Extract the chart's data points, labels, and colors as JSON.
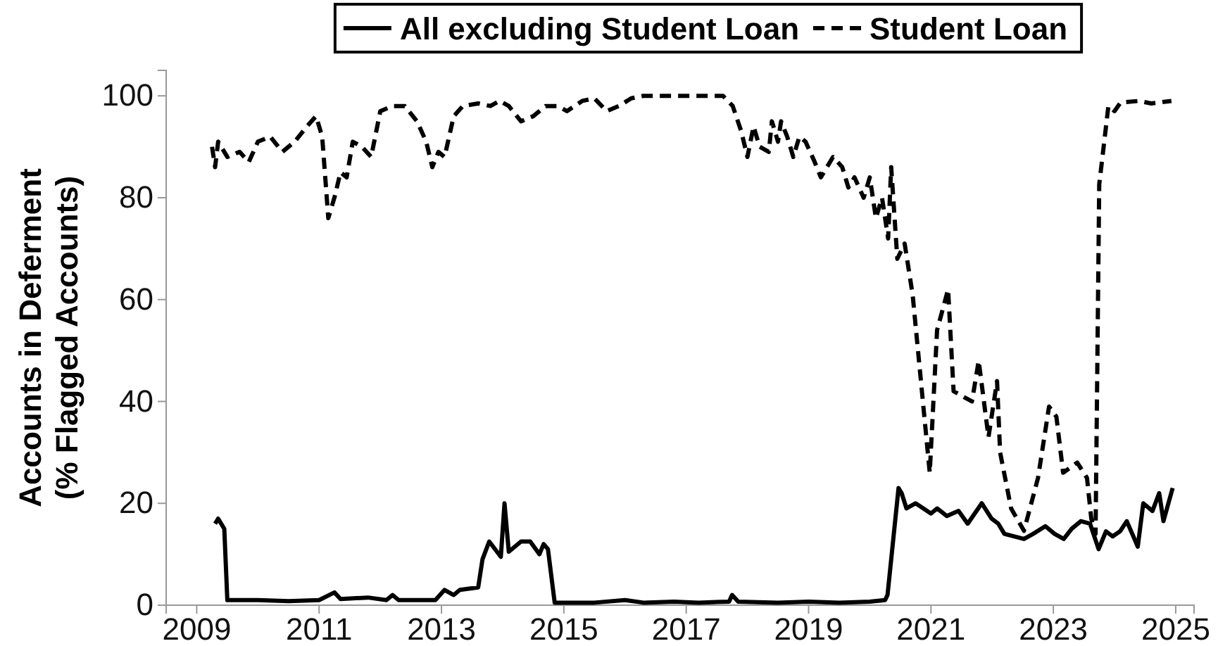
{
  "chart_data": {
    "type": "line",
    "ylabel": "Accounts in Deferment\n(% Flagged Accounts)",
    "xlim": [
      2008.5,
      2025.3
    ],
    "xticks": [
      2009,
      2011,
      2013,
      2015,
      2017,
      2019,
      2021,
      2023,
      2025
    ],
    "ylim": [
      0,
      105
    ],
    "yticks": [
      0,
      20,
      40,
      60,
      80,
      100
    ],
    "grid": false,
    "legend": "top",
    "marker": "none",
    "series": [
      {
        "name": "All excluding Student Loan",
        "color": "#000000",
        "line_style": "solid",
        "x": [
          2009.3,
          2009.35,
          2009.45,
          2009.5,
          2010,
          2010.5,
          2011,
          2011.25,
          2011.35,
          2011.8,
          2012.1,
          2012.2,
          2012.3,
          2012.9,
          2013.05,
          2013.2,
          2013.3,
          2013.6,
          2013.67,
          2013.78,
          2013.97,
          2014.03,
          2014.1,
          2014.3,
          2014.45,
          2014.6,
          2014.67,
          2014.74,
          2014.85,
          2015.5,
          2016,
          2016.3,
          2016.8,
          2017.2,
          2017.7,
          2017.75,
          2017.85,
          2018.5,
          2019,
          2019.5,
          2020,
          2020.25,
          2020.29,
          2020.47,
          2020.52,
          2020.6,
          2020.75,
          2021,
          2021.1,
          2021.26,
          2021.45,
          2021.6,
          2021.83,
          2021.99,
          2022.1,
          2022.2,
          2022.52,
          2022.67,
          2022.87,
          2023.02,
          2023.17,
          2023.3,
          2023.45,
          2023.6,
          2023.74,
          2023.86,
          2023.97,
          2024.09,
          2024.2,
          2024.38,
          2024.47,
          2024.62,
          2024.73,
          2024.8,
          2024.95
        ],
        "values": [
          16,
          17,
          15,
          1,
          1,
          0.8,
          1,
          2.5,
          1.2,
          1.5,
          1,
          2,
          1,
          1,
          3,
          2,
          3,
          3.5,
          9,
          12.5,
          9.5,
          20,
          10.5,
          12.5,
          12.5,
          10,
          12,
          11,
          0.5,
          0.5,
          1,
          0.5,
          0.7,
          0.5,
          0.7,
          2,
          0.7,
          0.5,
          0.7,
          0.5,
          0.7,
          1,
          2,
          23,
          22,
          19,
          20,
          18,
          19,
          17.5,
          18.5,
          16,
          20,
          17,
          16,
          14,
          13,
          14,
          15.5,
          14,
          13,
          15,
          16.5,
          16,
          11,
          14.5,
          13.5,
          14.5,
          16.5,
          11.5,
          20,
          18.5,
          22,
          16.5,
          23
        ]
      },
      {
        "name": "Student Loan",
        "color": "#000000",
        "line_style": "dashed",
        "x": [
          2009.25,
          2009.3,
          2009.35,
          2009.5,
          2009.7,
          2009.85,
          2010,
          2010.2,
          2010.4,
          2010.6,
          2010.8,
          2010.95,
          2011.05,
          2011.15,
          2011.25,
          2011.35,
          2011.45,
          2011.55,
          2011.7,
          2011.85,
          2012,
          2012.2,
          2012.4,
          2012.6,
          2012.75,
          2012.85,
          2012.95,
          2013.05,
          2013.2,
          2013.35,
          2013.6,
          2013.8,
          2013.95,
          2014.1,
          2014.3,
          2014.5,
          2014.7,
          2014.9,
          2015.05,
          2015.3,
          2015.5,
          2015.7,
          2015.9,
          2016.1,
          2016.3,
          2017,
          2017.6,
          2017.76,
          2017.9,
          2018,
          2018.1,
          2018.2,
          2018.35,
          2018.4,
          2018.5,
          2018.55,
          2018.65,
          2018.75,
          2018.85,
          2018.95,
          2019.1,
          2019.2,
          2019.3,
          2019.4,
          2019.55,
          2019.65,
          2019.75,
          2019.9,
          2020,
          2020.1,
          2020.2,
          2020.3,
          2020.35,
          2020.45,
          2020.57,
          2020.7,
          2020.98,
          2021.1,
          2021.28,
          2021.37,
          2021.67,
          2021.78,
          2021.94,
          2022.08,
          2022.13,
          2022.31,
          2022.52,
          2022.75,
          2022.93,
          2023.05,
          2023.16,
          2023.39,
          2023.55,
          2023.62,
          2023.69,
          2023.75,
          2023.9,
          2024,
          2024.1,
          2024.4,
          2024.6,
          2024.93
        ],
        "values": [
          90,
          86,
          91,
          88,
          89,
          87,
          91,
          92,
          89,
          91,
          94,
          96,
          92,
          76,
          80,
          85,
          84,
          91,
          90,
          88,
          97,
          98,
          98,
          95,
          91,
          86,
          89,
          88,
          96,
          98,
          98.5,
          98,
          99,
          98,
          95,
          96,
          98,
          98,
          97,
          99,
          99.5,
          97,
          98,
          99.5,
          100,
          100,
          100,
          98,
          93,
          88,
          94,
          90,
          89,
          95,
          91,
          95,
          92,
          88,
          92,
          91,
          87,
          84,
          86,
          88,
          86,
          82,
          84,
          80,
          84,
          76,
          80,
          72,
          86,
          68,
          71,
          61,
          26,
          54,
          62,
          42,
          40,
          48,
          33,
          44,
          30,
          19,
          14.6,
          25,
          39,
          37,
          26,
          28,
          25,
          17,
          14,
          82.6,
          98,
          97,
          98.7,
          99,
          98.5,
          99
        ]
      }
    ]
  }
}
